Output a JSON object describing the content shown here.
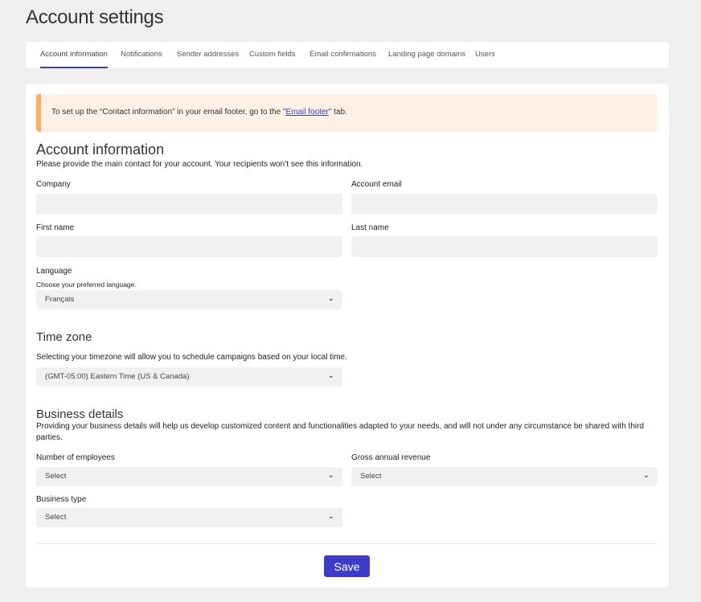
{
  "page_title": "Account settings",
  "tabs": [
    {
      "label": "Account information",
      "active": true
    },
    {
      "label": "Notifications"
    },
    {
      "label": "Sender addresses"
    },
    {
      "label": "Custom fields"
    },
    {
      "label": "Email confirmations"
    },
    {
      "label": "Landing page domains"
    },
    {
      "label": "Users"
    }
  ],
  "alert": {
    "before": "To set up the “Contact information” in your email footer, go to the \"",
    "link": "Email footer",
    "after": "\" tab."
  },
  "account_info": {
    "heading": "Account information",
    "description": "Please provide the main contact for your account. Your recipients won’t see this information.",
    "company_label": "Company",
    "company_value": "",
    "email_label": "Account email",
    "email_value": "",
    "first_name_label": "First name",
    "first_name_value": "",
    "last_name_label": "Last name",
    "last_name_value": "",
    "language_label": "Language",
    "language_hint": "Choose your preferred language.",
    "language_value": "Français"
  },
  "time_zone": {
    "heading": "Time zone",
    "description": "Selecting your timezone will allow you to schedule campaigns based on your local time.",
    "value": "(GMT-05:00) Eastern Time (US & Canada)"
  },
  "business": {
    "heading": "Business details",
    "description": "Providing your business details will help us develop customized content and functionalities adapted to your needs, and will not under any circumstance be shared with third parties.",
    "employees_label": "Number of employees",
    "employees_value": "Select",
    "revenue_label": "Gross annual revenue",
    "revenue_value": "Select",
    "type_label": "Business type",
    "type_value": "Select"
  },
  "save_label": "Save",
  "colors": {
    "accent": "#3c3cc8",
    "alert_border": "#ffaa5f",
    "alert_bg": "#fff0e6"
  }
}
